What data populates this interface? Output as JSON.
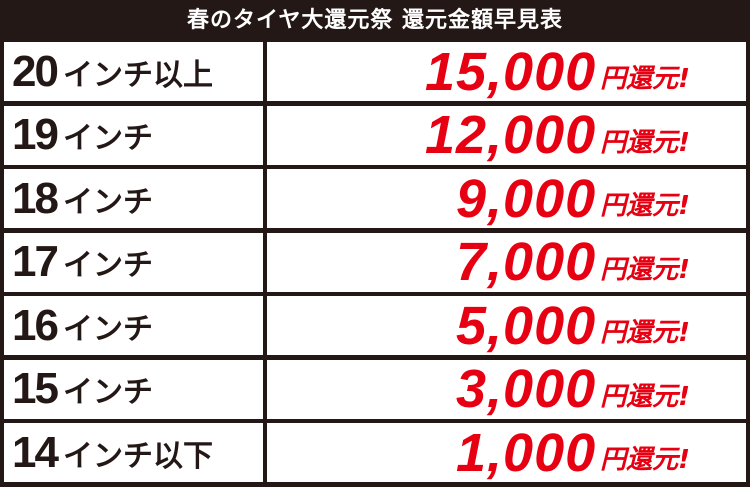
{
  "title": "春のタイヤ大還元祭 還元金額早見表",
  "colors": {
    "background": "#231815",
    "amount": "#e60012"
  },
  "rows": [
    {
      "size": "20",
      "unit": "インチ以上",
      "amount": "15,000",
      "suffix": "円還元!"
    },
    {
      "size": "19",
      "unit": "インチ",
      "amount": "12,000",
      "suffix": "円還元!"
    },
    {
      "size": "18",
      "unit": "インチ",
      "amount": "9,000",
      "suffix": "円還元!"
    },
    {
      "size": "17",
      "unit": "インチ",
      "amount": "7,000",
      "suffix": "円還元!"
    },
    {
      "size": "16",
      "unit": "インチ",
      "amount": "5,000",
      "suffix": "円還元!"
    },
    {
      "size": "15",
      "unit": "インチ",
      "amount": "3,000",
      "suffix": "円還元!"
    },
    {
      "size": "14",
      "unit": "インチ以下",
      "amount": "1,000",
      "suffix": "円還元!"
    }
  ]
}
